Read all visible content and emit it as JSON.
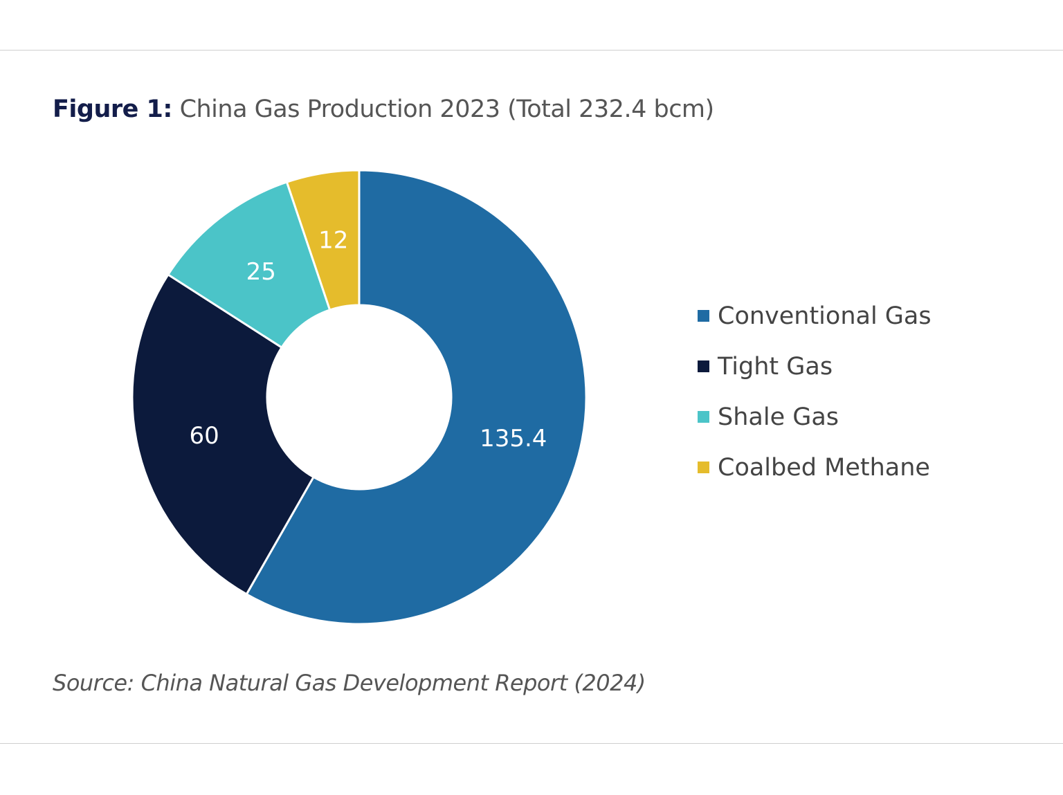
{
  "title": {
    "prefix": "Figure 1:",
    "text": "China Gas Production 2023 (Total 232.4 bcm)"
  },
  "source": "Source: China Natural Gas Development Report (2024)",
  "chart_data": {
    "type": "pie",
    "variant": "donut",
    "title": "China Gas Production 2023 (Total 232.4 bcm)",
    "unit": "bcm",
    "total": 232.4,
    "legend_position": "right",
    "slices": [
      {
        "name": "Conventional Gas",
        "value": 135.4,
        "label": "135.4",
        "color": "#1f6ba3"
      },
      {
        "name": "Tight Gas",
        "value": 60,
        "label": "60",
        "color": "#0c1a3c"
      },
      {
        "name": "Shale Gas",
        "value": 25,
        "label": "25",
        "color": "#4bc4c8"
      },
      {
        "name": "Coalbed Methane",
        "value": 12,
        "label": "12",
        "color": "#e5bc2c"
      }
    ]
  }
}
